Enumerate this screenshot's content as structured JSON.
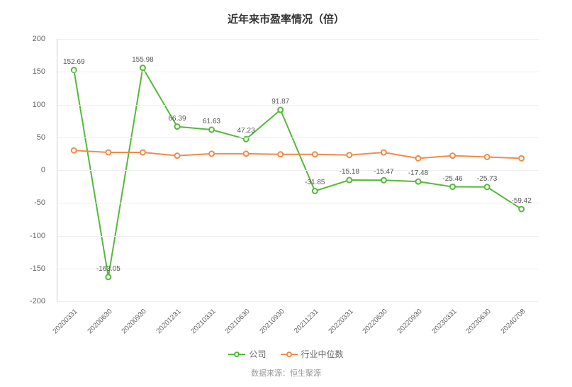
{
  "chart": {
    "type": "line",
    "title": "近年来市盈率情况（倍）",
    "title_fontsize": 15,
    "background_color": "#ffffff",
    "grid_color": "#eeeeee",
    "axis_color": "#cccccc",
    "label_color": "#666666",
    "data_label_color": "#555555",
    "data_label_fontsize": 10,
    "ylim": [
      -200,
      200
    ],
    "ytick_step": 50,
    "yticks": [
      -200,
      -150,
      -100,
      -50,
      0,
      50,
      100,
      150,
      200
    ],
    "categories": [
      "20200331",
      "20200630",
      "20200930",
      "20201231",
      "20210331",
      "20210630",
      "20210930",
      "20211231",
      "20220331",
      "20220630",
      "20220930",
      "20230331",
      "20230630",
      "20240708"
    ],
    "x_label_fontsize": 10,
    "x_label_rotation": -45,
    "series": [
      {
        "name": "公司",
        "color": "#54b93a",
        "line_width": 2,
        "marker": "circle",
        "marker_size": 7,
        "marker_fill": "#ffffff",
        "marker_border_width": 2,
        "values": [
          152.69,
          -163.05,
          155.98,
          66.39,
          61.63,
          47.23,
          91.87,
          -31.85,
          -15.18,
          -15.47,
          -17.48,
          -25.46,
          -25.73,
          -59.42
        ],
        "show_labels": true,
        "labels": [
          "152.69",
          "-163.05",
          "155.98",
          "66.39",
          "61.63",
          "47.23",
          "91.87",
          "-31.85",
          "-15.18",
          "-15.47",
          "-17.48",
          "-25.46",
          "-25.73",
          "-59.42"
        ]
      },
      {
        "name": "行业中位数",
        "color": "#f08b4a",
        "line_width": 2,
        "marker": "circle",
        "marker_size": 7,
        "marker_fill": "#ffffff",
        "marker_border_width": 2,
        "values": [
          30,
          27,
          27,
          22,
          25,
          25,
          24,
          24,
          23,
          27,
          18,
          22,
          20,
          18
        ],
        "show_labels": false
      }
    ],
    "legend": {
      "items": [
        "公司",
        "行业中位数"
      ],
      "colors": [
        "#54b93a",
        "#f08b4a"
      ]
    },
    "source_label": "数据来源：恒生聚源"
  }
}
